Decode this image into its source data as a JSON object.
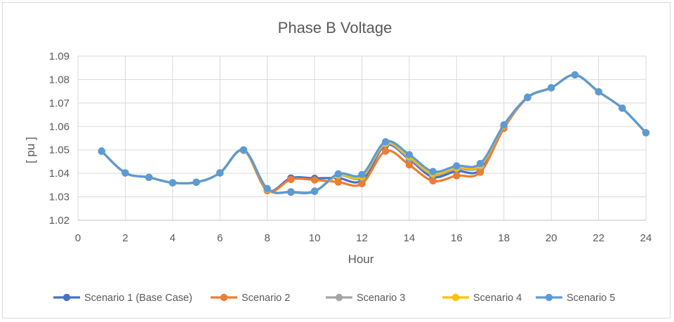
{
  "chart_data": {
    "type": "line",
    "title": "Phase B Voltage",
    "xlabel": "Hour",
    "ylabel": "[ pu ]",
    "xlim": [
      0,
      24
    ],
    "ylim": [
      1.02,
      1.09
    ],
    "xticks": [
      0,
      2,
      4,
      6,
      8,
      10,
      12,
      14,
      16,
      18,
      20,
      22,
      24
    ],
    "yticks": [
      1.02,
      1.03,
      1.04,
      1.05,
      1.06,
      1.07,
      1.08,
      1.09
    ],
    "x": [
      1,
      2,
      3,
      4,
      5,
      6,
      7,
      8,
      9,
      10,
      11,
      12,
      13,
      14,
      15,
      16,
      17,
      18,
      19,
      20,
      21,
      22,
      23,
      24
    ],
    "legend_position": "bottom",
    "grid": true,
    "series": [
      {
        "name": "Scenario 1 (Base Case)",
        "color": "#4472C4",
        "values": [
          1.0495,
          1.0402,
          1.0383,
          1.036,
          1.0362,
          1.0402,
          1.05,
          1.0328,
          1.038,
          1.0379,
          1.038,
          1.037,
          1.052,
          1.046,
          1.0385,
          1.041,
          1.0415,
          1.06,
          1.0725,
          1.0765,
          1.082,
          1.0748,
          1.0678,
          1.0573
        ]
      },
      {
        "name": "Scenario 2",
        "color": "#ED7D31",
        "values": [
          1.0495,
          1.0402,
          1.0383,
          1.036,
          1.0362,
          1.0402,
          1.0498,
          1.0326,
          1.0374,
          1.0372,
          1.0363,
          1.0356,
          1.0495,
          1.0436,
          1.0368,
          1.039,
          1.0405,
          1.0592,
          1.0723,
          1.0765,
          1.082,
          1.0748,
          1.0678,
          1.0573
        ]
      },
      {
        "name": "Scenario 3",
        "color": "#A5A5A5",
        "values": [
          1.0495,
          1.0402,
          1.0383,
          1.036,
          1.0362,
          1.0402,
          1.05,
          1.0332,
          1.0322,
          1.0325,
          1.039,
          1.0383,
          1.0525,
          1.0465,
          1.0395,
          1.042,
          1.043,
          1.0603,
          1.0724,
          1.0765,
          1.082,
          1.0748,
          1.0678,
          1.0573
        ]
      },
      {
        "name": "Scenario 4",
        "color": "#FFC000",
        "values": [
          1.0495,
          1.0402,
          1.0383,
          1.036,
          1.0362,
          1.0402,
          1.05,
          1.0333,
          1.032,
          1.0323,
          1.0393,
          1.0388,
          1.053,
          1.0472,
          1.04,
          1.0425,
          1.0435,
          1.0605,
          1.0724,
          1.0765,
          1.082,
          1.0748,
          1.0678,
          1.0573
        ]
      },
      {
        "name": "Scenario 5",
        "color": "#5B9BD5",
        "values": [
          1.0495,
          1.0402,
          1.0383,
          1.036,
          1.0362,
          1.0402,
          1.05,
          1.0335,
          1.032,
          1.0323,
          1.0398,
          1.0395,
          1.0535,
          1.048,
          1.0408,
          1.0432,
          1.0442,
          1.0607,
          1.0724,
          1.0765,
          1.082,
          1.0748,
          1.0678,
          1.0573
        ]
      }
    ]
  }
}
